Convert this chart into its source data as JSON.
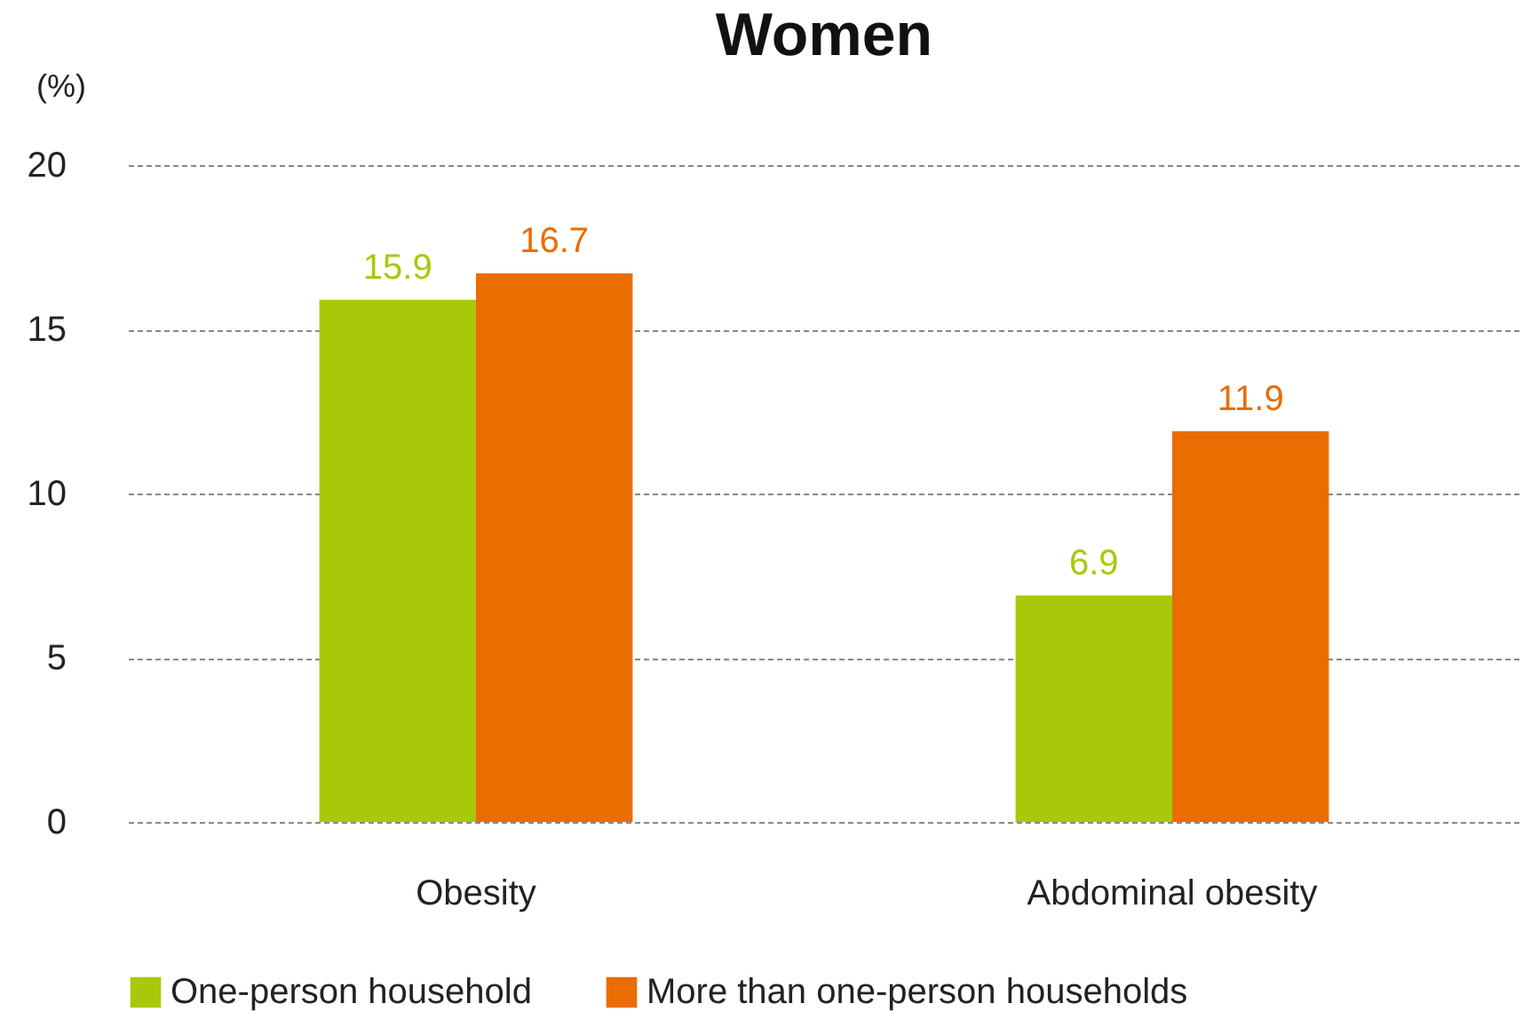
{
  "chart_data": {
    "type": "bar",
    "title": "Women",
    "ylabel": "(%)",
    "categories": [
      "Obesity",
      "Abdominal obesity"
    ],
    "series": [
      {
        "name": "One-person household",
        "color": "#a8c90a",
        "values": [
          15.9,
          6.9
        ]
      },
      {
        "name": "More than one-person households",
        "color": "#eb6c00",
        "values": [
          16.7,
          11.9
        ]
      }
    ],
    "ylim": [
      0,
      20
    ],
    "yticks": [
      0,
      5,
      10,
      15,
      20
    ],
    "grid": "y",
    "legend": "bottom",
    "data_labels": true
  }
}
